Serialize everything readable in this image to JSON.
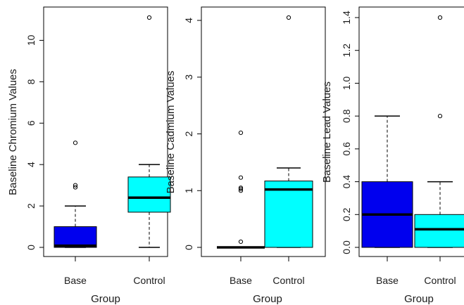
{
  "colors": {
    "Base": "#0000ee",
    "Control": "#00ffff"
  },
  "chart_data": [
    {
      "type": "box",
      "xlabel": "Group",
      "ylabel": "Baseline Chromium Values",
      "categories": [
        "Base",
        "Control"
      ],
      "ylim": [
        0,
        11.1
      ],
      "yticks": [
        0,
        2,
        4,
        6,
        8,
        10
      ],
      "boxes": [
        {
          "group": "Base",
          "whisker_low": 0.0,
          "q1": 0.0,
          "median": 0.08,
          "q3": 1.0,
          "whisker_high": 2.0,
          "outliers": [
            2.9,
            3.0,
            5.05
          ]
        },
        {
          "group": "Control",
          "whisker_low": 0.0,
          "q1": 1.7,
          "median": 2.4,
          "q3": 3.4,
          "whisker_high": 4.0,
          "outliers": [
            11.1
          ]
        }
      ]
    },
    {
      "type": "box",
      "xlabel": "Group",
      "ylabel": "Baseline Cadmium Values",
      "categories": [
        "Base",
        "Control"
      ],
      "ylim": [
        0,
        4.05
      ],
      "yticks": [
        0,
        1,
        2,
        3,
        4
      ],
      "boxes": [
        {
          "group": "Base",
          "whisker_low": 0.0,
          "q1": 0.0,
          "median": 0.0,
          "q3": 0.0,
          "whisker_high": 0.0,
          "outliers": [
            0.1,
            1.0,
            1.03,
            1.05,
            1.23,
            2.02
          ]
        },
        {
          "group": "Control",
          "whisker_low": 0.0,
          "q1": 0.0,
          "median": 1.02,
          "q3": 1.17,
          "whisker_high": 1.4,
          "outliers": [
            4.05
          ]
        }
      ]
    },
    {
      "type": "box",
      "xlabel": "Group",
      "ylabel": "Baseline Lead Values",
      "categories": [
        "Base",
        "Control"
      ],
      "ylim": [
        0,
        1.4
      ],
      "yticks": [
        "0.0",
        "0.2",
        "0.4",
        "0.6",
        "0.8",
        "1.0",
        "1.2",
        "1.4"
      ],
      "boxes": [
        {
          "group": "Base",
          "whisker_low": 0.0,
          "q1": 0.0,
          "median": 0.2,
          "q3": 0.4,
          "whisker_high": 0.8,
          "outliers": []
        },
        {
          "group": "Control",
          "whisker_low": 0.0,
          "q1": 0.0,
          "median": 0.11,
          "q3": 0.2,
          "whisker_high": 0.4,
          "outliers": [
            0.8,
            1.4
          ]
        }
      ]
    }
  ]
}
